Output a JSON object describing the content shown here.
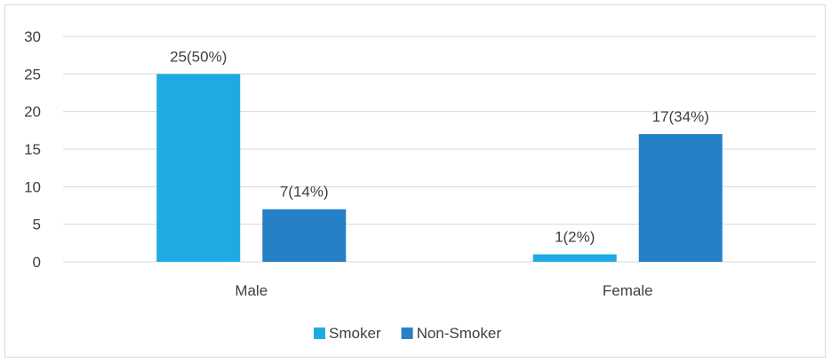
{
  "chart_data": {
    "type": "bar",
    "categories": [
      "Male",
      "Female"
    ],
    "series": [
      {
        "name": "Smoker",
        "values": [
          25,
          1
        ],
        "labels": [
          "25(50%)",
          "1(2%)"
        ],
        "color": "#1EABE3"
      },
      {
        "name": "Non-Smoker",
        "values": [
          7,
          17
        ],
        "labels": [
          "7(14%)",
          "17(34%)"
        ],
        "color": "#2680C6"
      }
    ],
    "yticks": [
      "0",
      "5",
      "10",
      "15",
      "20",
      "25",
      "30"
    ],
    "ylim": [
      0,
      30
    ],
    "grid": true,
    "legend_position": "bottom",
    "title": "",
    "xlabel": "",
    "ylabel": ""
  }
}
